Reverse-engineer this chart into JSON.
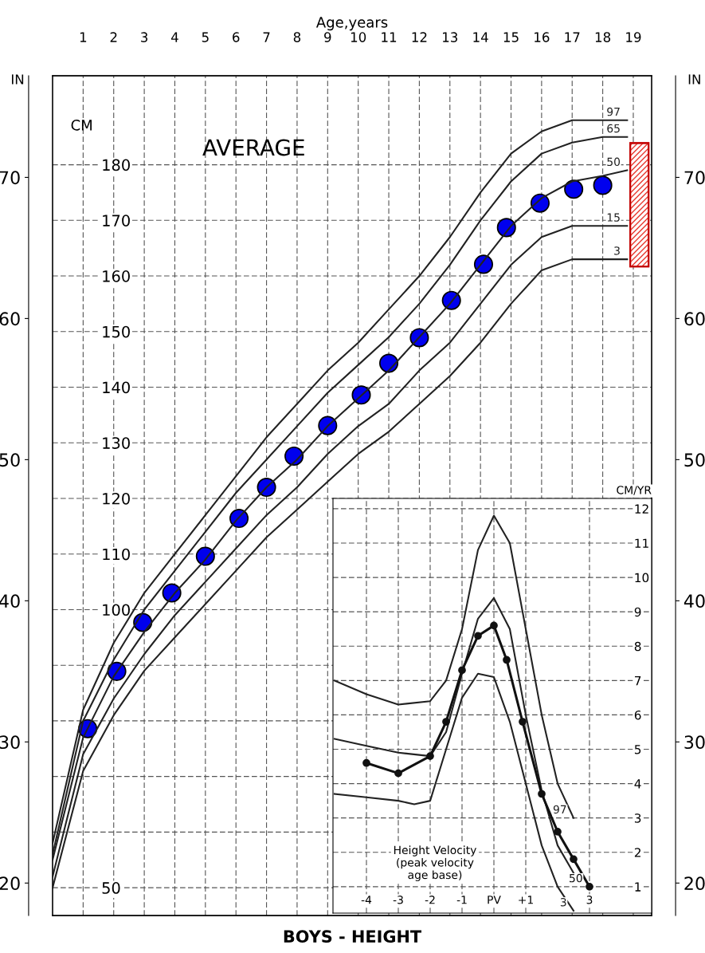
{
  "chart_data": [
    {
      "type": "line",
      "title": "BOYS - HEIGHT",
      "xlabel": "Age,years",
      "ylabel": "CM",
      "y2label": "IN",
      "y3label": "IN",
      "annotations": [
        "AVERAGE"
      ],
      "xlim": [
        0,
        19.6
      ],
      "xticks": [
        1,
        2,
        3,
        4,
        5,
        6,
        7,
        8,
        9,
        10,
        11,
        12,
        13,
        14,
        15,
        16,
        17,
        18,
        19
      ],
      "ylim": [
        45,
        196
      ],
      "yticks": [
        50,
        {
          "value": 60,
          "label": null
        },
        {
          "value": 70,
          "label": null
        },
        {
          "value": 80,
          "label": null
        },
        {
          "value": 90,
          "label": null
        },
        100,
        110,
        120,
        130,
        140,
        150,
        160,
        170,
        180
      ],
      "y2lim": [
        17.7,
        77.2
      ],
      "y2ticks": [
        20,
        30,
        40,
        50,
        60,
        70
      ],
      "y3lim": [
        17.7,
        77.2
      ],
      "y3ticks": [
        20,
        30,
        40,
        50,
        60,
        70
      ],
      "grid": true,
      "line_style": "solid",
      "marker": "none",
      "series": [
        {
          "name": "97",
          "color": "#222222",
          "x": [
            0,
            1,
            2,
            3,
            4,
            5,
            6,
            7,
            8,
            9,
            10,
            11,
            12,
            13,
            14,
            15,
            16,
            17,
            18,
            18.8
          ],
          "values": [
            58,
            82,
            94,
            103,
            110,
            117,
            124,
            131,
            137,
            143,
            148,
            154,
            160,
            167,
            175,
            182,
            186,
            188,
            188,
            188
          ]
        },
        {
          "name": "65",
          "color": "#222222",
          "x": [
            0,
            1,
            2,
            3,
            4,
            5,
            6,
            7,
            8,
            9,
            10,
            11,
            12,
            13,
            14,
            15,
            16,
            17,
            18,
            18.8
          ],
          "values": [
            56,
            80,
            91,
            100,
            107,
            114,
            121,
            127,
            133,
            139,
            144,
            149,
            155,
            162,
            170,
            177,
            182,
            184,
            185,
            185
          ]
        },
        {
          "name": "50",
          "color": "#222222",
          "x": [
            0,
            1,
            2,
            3,
            4,
            5,
            6,
            7,
            8,
            9,
            10,
            11,
            12,
            13,
            14,
            15,
            16,
            17,
            18,
            18.8
          ],
          "values": [
            55,
            77,
            88,
            96,
            103,
            109,
            116,
            122,
            127,
            133,
            138,
            143,
            149,
            155,
            162,
            169,
            174,
            177,
            178,
            179
          ]
        },
        {
          "name": "15",
          "color": "#222222",
          "x": [
            0,
            1,
            2,
            3,
            4,
            5,
            6,
            7,
            8,
            9,
            10,
            11,
            12,
            13,
            14,
            15,
            16,
            17,
            18,
            18.8
          ],
          "values": [
            52,
            74,
            84,
            92,
            99,
            105,
            111,
            117,
            122,
            128,
            133,
            137,
            143,
            148,
            155,
            162,
            167,
            169,
            169,
            169
          ]
        },
        {
          "name": "3",
          "color": "#222222",
          "x": [
            0,
            1,
            2,
            3,
            4,
            5,
            6,
            7,
            8,
            9,
            10,
            11,
            12,
            13,
            14,
            15,
            16,
            17,
            18,
            18.8
          ],
          "values": [
            50,
            71,
            81,
            89,
            95,
            101,
            107,
            113,
            118,
            123,
            128,
            132,
            137,
            142,
            148,
            155,
            161,
            163,
            163,
            163
          ]
        },
        {
          "type": "scatter",
          "marker": "circle",
          "color": "#0000ee",
          "x": [
            1.15,
            2.1,
            2.95,
            3.9,
            5.0,
            6.1,
            7.0,
            7.9,
            9.0,
            10.1,
            11.0,
            12.0,
            13.05,
            14.1,
            14.85,
            15.95,
            17.05,
            18.0
          ],
          "values": [
            78.6,
            88.9,
            97.7,
            103,
            109.6,
            116.4,
            122,
            127.6,
            133.1,
            138.6,
            144.3,
            148.9,
            155.6,
            162.1,
            168.7,
            173.1,
            175.6,
            176.3
          ]
        },
        {
          "type": "bar",
          "color": "#e8392f",
          "x": [
            19.2
          ],
          "base": [
            161.7
          ],
          "values": [
            22.2
          ]
        }
      ]
    },
    {
      "type": "line",
      "ylabel": "CM/YR",
      "annotations": [
        "Height Velocity\n(peak velocity\nage base)"
      ],
      "xlim": [
        -5.05,
        4.95
      ],
      "xticks": [
        -4,
        -3,
        -2,
        -1,
        {
          "value": 0,
          "label": "PV"
        },
        {
          "value": 1,
          "label": "+1"
        },
        {
          "value": 3,
          "label": "3"
        }
      ],
      "ylim": [
        0.23,
        12.3
      ],
      "yticks": [
        1,
        2,
        3,
        4,
        5,
        6,
        7,
        8,
        9,
        10,
        11,
        12
      ],
      "grid": true,
      "line_style": "solid",
      "marker": "none",
      "series": [
        {
          "name": "97",
          "color": "#222222",
          "x": [
            -5,
            -4,
            -3,
            -2,
            -1.5,
            -1,
            -0.5,
            0,
            0.5,
            1,
            1.5,
            2,
            2.5
          ],
          "values": [
            7,
            6.6,
            6.3,
            6.4,
            7,
            8.5,
            10.8,
            11.8,
            11,
            8.5,
            6,
            4,
            3
          ]
        },
        {
          "color": "#222222",
          "x": [
            -5,
            -4,
            -3,
            -2,
            -1.5,
            -1,
            -0.5,
            0,
            0.5,
            1,
            1.5,
            2,
            2.5
          ],
          "values": [
            5.3,
            5.1,
            4.9,
            4.8,
            5.5,
            7.2,
            8.8,
            9.4,
            8.5,
            6,
            3.8,
            2.2,
            1.4
          ]
        },
        {
          "name": "50",
          "color": "#111111",
          "marker": "circle",
          "x": [
            -4,
            -3,
            -2,
            -1.5,
            -1,
            -0.5,
            0,
            0.4,
            0.9,
            1.5,
            2,
            2.5,
            3
          ],
          "values": [
            4.6,
            4.3,
            4.8,
            5.8,
            7.3,
            8.3,
            8.6,
            7.6,
            5.8,
            3.7,
            2.6,
            1.8,
            1
          ]
        },
        {
          "name": "3",
          "color": "#222222",
          "x": [
            -5,
            -4,
            -3,
            -2.5,
            -2,
            -1.5,
            -1,
            -0.5,
            0,
            0.5,
            1,
            1.5,
            2,
            2.5
          ],
          "values": [
            3.7,
            3.6,
            3.5,
            3.4,
            3.5,
            5,
            6.5,
            7.2,
            7.1,
            5.8,
            4,
            2.2,
            1,
            0.3
          ]
        }
      ]
    }
  ]
}
